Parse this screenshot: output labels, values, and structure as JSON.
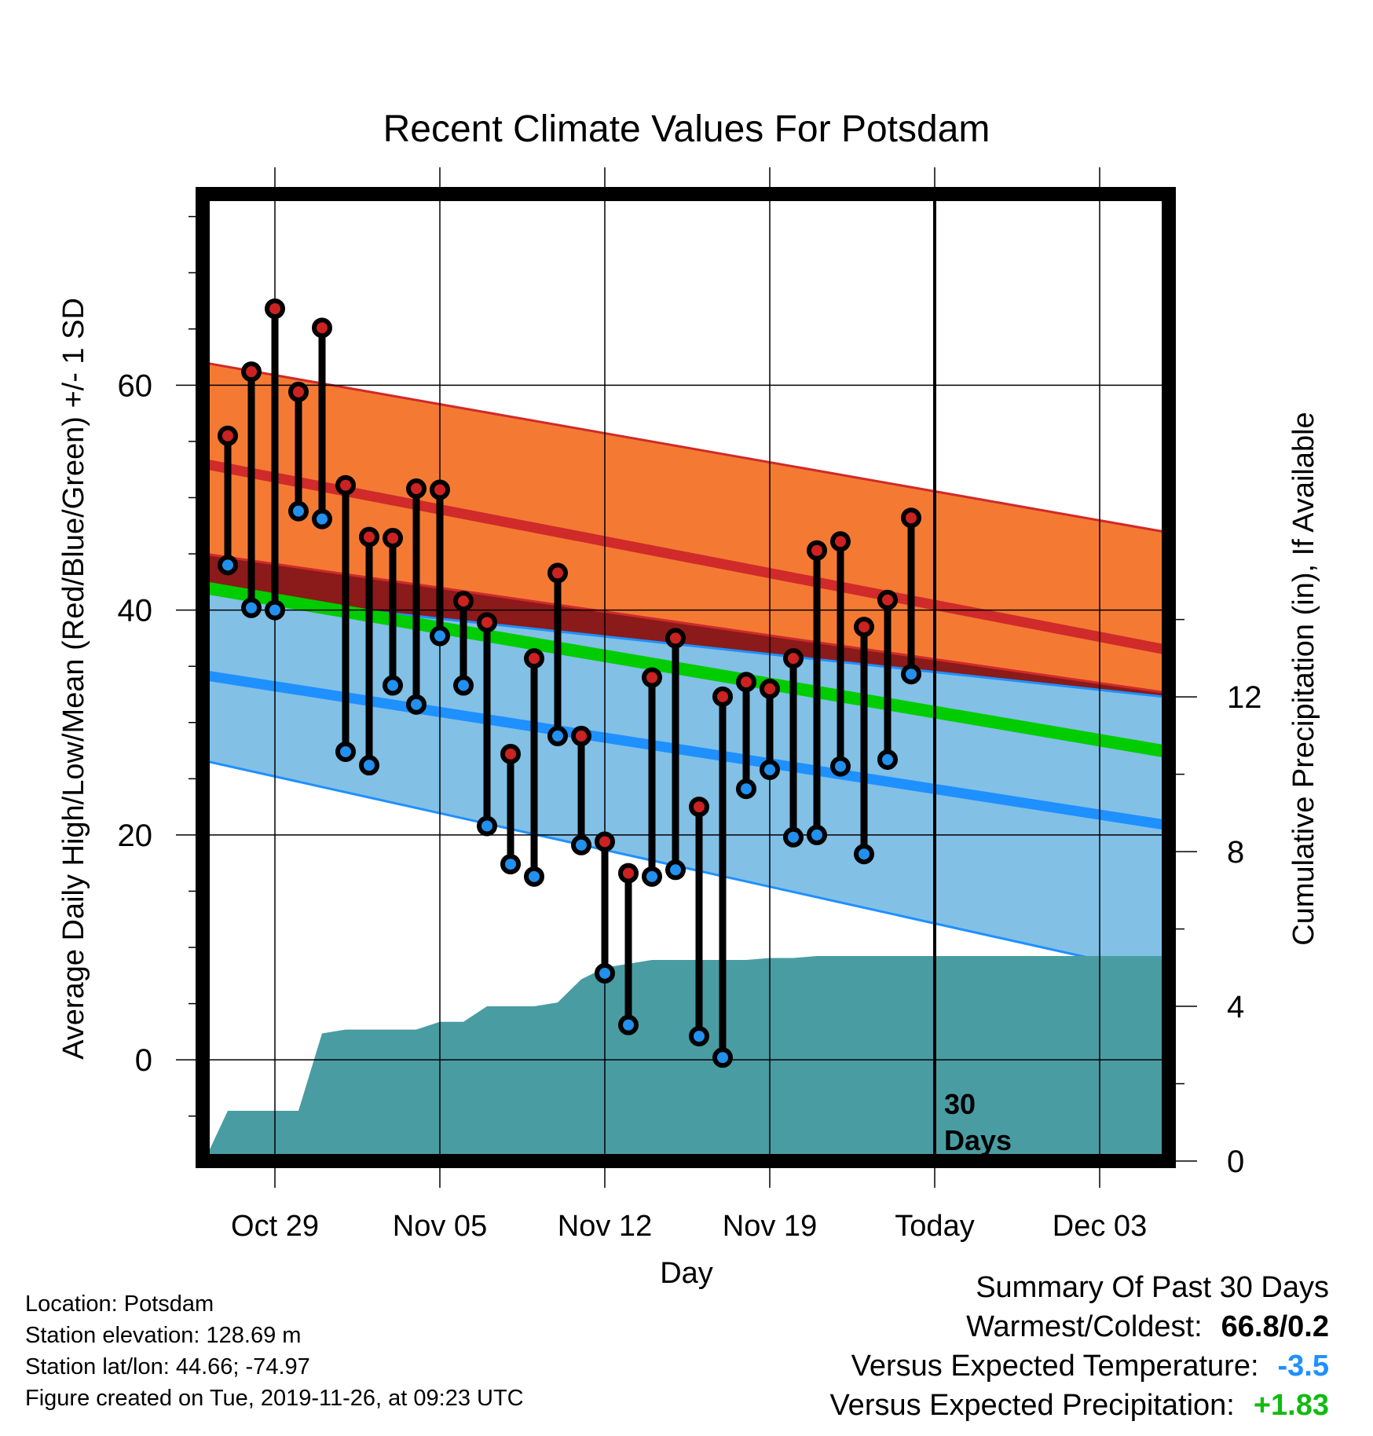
{
  "chart_data": {
    "type": "line",
    "title": "Recent Climate Values For Potsdam",
    "xlabel": "Day",
    "ylabel": "Average Daily High/Low/Mean (Red/Blue/Green) +/- 1 SD",
    "y2label": "Cumulative Precipitation (in), If Available",
    "x_tick_labels": [
      "Oct 29",
      "Nov 05",
      "Nov 12",
      "Nov 19",
      "Today",
      "Dec 03"
    ],
    "y_ticks": [
      0,
      20,
      40,
      60
    ],
    "y2_ticks": [
      0,
      4,
      8,
      12
    ],
    "ylim": [
      -9,
      77
    ],
    "y2lim": [
      0,
      25
    ],
    "today_label": "30\nDays",
    "colors": {
      "high_band": "#f47a33",
      "high_mean": "#d02a2a",
      "low_band": "#82c0e6",
      "low_mean": "#1e90ff",
      "mean": "#00cc00",
      "overlap": "#8b1a1a",
      "precip": "#4a9ca3",
      "high_point": "#cc2222",
      "low_point": "#2290ee"
    },
    "normals": {
      "x": [
        "Oct 26",
        "Dec 07"
      ],
      "high_mean": [
        53.0,
        36.0
      ],
      "high_plus_sd": [
        62.0,
        46.5
      ],
      "high_minus_sd": [
        45.0,
        32.3
      ],
      "low_mean": [
        34.2,
        20.5
      ],
      "low_plus_sd": [
        41.5,
        32.0
      ],
      "low_minus_sd": [
        26.6,
        7.0
      ],
      "mean": [
        42.0,
        27.0
      ]
    },
    "daily": {
      "dates": [
        "Oct 27",
        "Oct 28",
        "Oct 29",
        "Oct 30",
        "Oct 31",
        "Nov 01",
        "Nov 02",
        "Nov 03",
        "Nov 04",
        "Nov 05",
        "Nov 06",
        "Nov 07",
        "Nov 08",
        "Nov 09",
        "Nov 10",
        "Nov 11",
        "Nov 12",
        "Nov 13",
        "Nov 14",
        "Nov 15",
        "Nov 16",
        "Nov 17",
        "Nov 18",
        "Nov 19",
        "Nov 20",
        "Nov 21",
        "Nov 22",
        "Nov 23",
        "Nov 24",
        "Nov 25"
      ],
      "high": [
        55.5,
        61.2,
        66.8,
        59.4,
        65.1,
        51.1,
        46.5,
        46.4,
        50.8,
        50.7,
        40.8,
        38.9,
        27.2,
        35.7,
        43.3,
        28.8,
        19.4,
        16.6,
        34.0,
        37.5,
        22.5,
        32.3,
        33.6,
        33.0,
        35.7,
        45.3,
        46.1,
        38.5,
        40.9,
        48.2
      ],
      "low": [
        44.0,
        40.2,
        40.0,
        48.8,
        48.1,
        27.4,
        26.2,
        33.3,
        31.6,
        37.7,
        33.3,
        20.8,
        17.4,
        16.3,
        28.8,
        19.1,
        7.7,
        3.1,
        16.3,
        16.9,
        2.1,
        0.2,
        24.1,
        25.8,
        19.8,
        20.0,
        26.1,
        18.3,
        26.7,
        34.3
      ]
    },
    "precipitation": {
      "dates": [
        "Oct 26",
        "Oct 27",
        "Oct 28",
        "Oct 29",
        "Oct 30",
        "Oct 31",
        "Nov 01",
        "Nov 02",
        "Nov 03",
        "Nov 04",
        "Nov 05",
        "Nov 06",
        "Nov 07",
        "Nov 08",
        "Nov 09",
        "Nov 10",
        "Nov 11",
        "Nov 12",
        "Nov 13",
        "Nov 14",
        "Nov 15",
        "Nov 16",
        "Nov 17",
        "Nov 18",
        "Nov 19",
        "Nov 20",
        "Nov 21",
        "Nov 22",
        "Nov 23",
        "Nov 24",
        "Nov 25"
      ],
      "cumulative": [
        0.0,
        1.3,
        1.3,
        1.3,
        1.3,
        3.3,
        3.4,
        3.4,
        3.4,
        3.4,
        3.6,
        3.6,
        4.0,
        4.0,
        4.0,
        4.1,
        4.7,
        5.0,
        5.1,
        5.2,
        5.2,
        5.2,
        5.2,
        5.2,
        5.25,
        5.25,
        5.3,
        5.3,
        5.3,
        5.3,
        5.3
      ]
    }
  },
  "footer": {
    "location": "Location: Potsdam",
    "elevation": "Station elevation: 128.69 m",
    "latlon": "Station lat/lon: 44.66; -74.97",
    "created": "Figure created on Tue, 2019-11-26, at 09:23 UTC"
  },
  "summary": {
    "title": "Summary Of Past 30 Days",
    "warmest_coldest_label": "Warmest/Coldest:",
    "warmest_coldest_value": "66.8/0.2",
    "temp_label": "Versus Expected Temperature:",
    "temp_value": "-3.5",
    "temp_color": "#1e90ff",
    "precip_label": "Versus Expected Precipitation:",
    "precip_value": "+1.83",
    "precip_color": "#11bb11"
  }
}
